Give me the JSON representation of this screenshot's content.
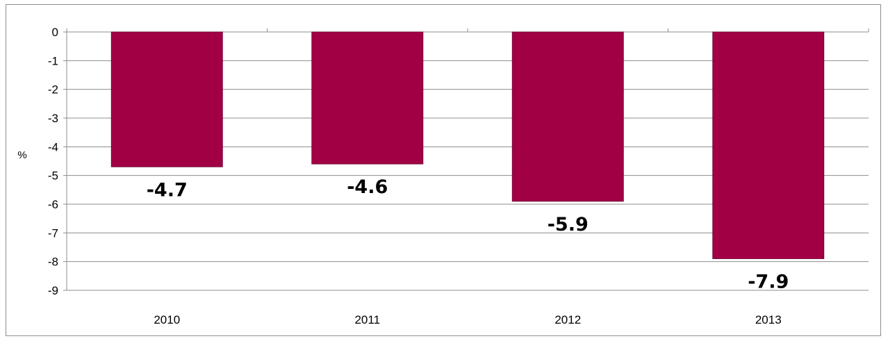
{
  "chart_data": {
    "type": "bar",
    "categories": [
      "2010",
      "2011",
      "2012",
      "2013"
    ],
    "values": [
      -4.7,
      -4.6,
      -5.9,
      -7.9
    ],
    "data_labels": [
      "-4.7",
      "-4.6",
      "-5.9",
      "-7.9"
    ],
    "ylabel": "%",
    "ylim": [
      -9,
      0
    ],
    "yticks": [
      "0",
      "-1",
      "-2",
      "-3",
      "-4",
      "-5",
      "-6",
      "-7",
      "-8",
      "-9"
    ],
    "grid": true,
    "legend": "none",
    "bar_color": "#A20045"
  }
}
